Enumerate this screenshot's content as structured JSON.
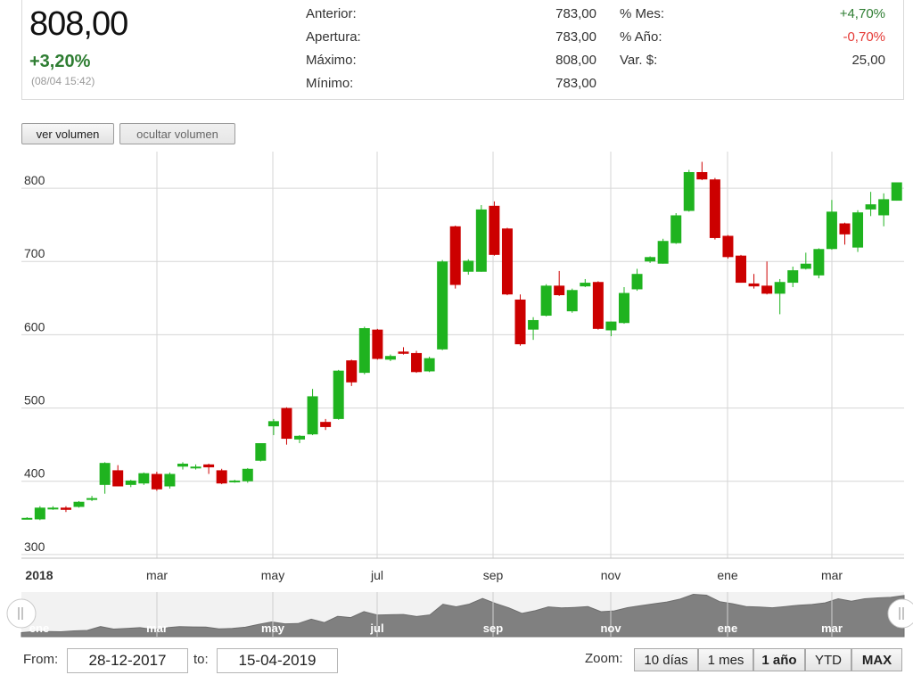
{
  "quote": {
    "price": "808,00",
    "change": "+3,20%",
    "timestamp": "(08/04 15:42)",
    "stats_left": [
      {
        "label": "Anterior:",
        "value": "783,00"
      },
      {
        "label": "Apertura:",
        "value": "783,00"
      },
      {
        "label": "Máximo:",
        "value": "808,00"
      },
      {
        "label": "Mínimo:",
        "value": "783,00"
      }
    ],
    "stats_right": [
      {
        "label": "% Mes:",
        "value": "+4,70%",
        "sign": "pos"
      },
      {
        "label": "% Año:",
        "value": "-0,70%",
        "sign": "neg"
      },
      {
        "label": "Var. $:",
        "value": "25,00",
        "sign": "none"
      }
    ]
  },
  "volume_buttons": {
    "show": "ver volumen",
    "hide": "ocultar volumen"
  },
  "range": {
    "from_label": "From:",
    "from": "28-12-2017",
    "to_label": "to:",
    "to": "15-04-2019"
  },
  "zoom": {
    "label": "Zoom:",
    "options": [
      "10 días",
      "1 mes",
      "1 año",
      "YTD",
      "MAX"
    ],
    "bold": [
      "1 año",
      "MAX"
    ]
  },
  "colors": {
    "up": "#1fb31f",
    "down": "#cc0000",
    "grid": "#d6d6d6",
    "navigator": "#808080"
  },
  "chart_data": {
    "type": "candlestick",
    "y_ticks": [
      300,
      400,
      500,
      600,
      700,
      800
    ],
    "ylim": [
      295,
      850
    ],
    "x_tick_labels": [
      "2018",
      "mar",
      "may",
      "jul",
      "sep",
      "nov",
      "ene",
      "mar"
    ],
    "candles": [
      {
        "o": 350,
        "h": 351,
        "l": 349,
        "c": 350
      },
      {
        "o": 348,
        "h": 366,
        "l": 347,
        "c": 364
      },
      {
        "o": 363,
        "h": 366,
        "l": 361,
        "c": 364
      },
      {
        "o": 364,
        "h": 366,
        "l": 358,
        "c": 361
      },
      {
        "o": 365,
        "h": 373,
        "l": 364,
        "c": 372
      },
      {
        "o": 375,
        "h": 380,
        "l": 373,
        "c": 377
      },
      {
        "o": 395,
        "h": 426,
        "l": 383,
        "c": 425
      },
      {
        "o": 415,
        "h": 422,
        "l": 393,
        "c": 393
      },
      {
        "o": 395,
        "h": 402,
        "l": 392,
        "c": 401
      },
      {
        "o": 397,
        "h": 412,
        "l": 395,
        "c": 411
      },
      {
        "o": 410,
        "h": 413,
        "l": 387,
        "c": 389
      },
      {
        "o": 393,
        "h": 412,
        "l": 390,
        "c": 410
      },
      {
        "o": 420,
        "h": 426,
        "l": 416,
        "c": 424
      },
      {
        "o": 419,
        "h": 423,
        "l": 416,
        "c": 420
      },
      {
        "o": 423,
        "h": 424,
        "l": 410,
        "c": 419
      },
      {
        "o": 415,
        "h": 417,
        "l": 396,
        "c": 397
      },
      {
        "o": 400,
        "h": 402,
        "l": 398,
        "c": 401
      },
      {
        "o": 400,
        "h": 418,
        "l": 398,
        "c": 417
      },
      {
        "o": 428,
        "h": 452,
        "l": 427,
        "c": 452
      },
      {
        "o": 475,
        "h": 485,
        "l": 463,
        "c": 482
      },
      {
        "o": 500,
        "h": 501,
        "l": 450,
        "c": 458
      },
      {
        "o": 457,
        "h": 463,
        "l": 452,
        "c": 462
      },
      {
        "o": 464,
        "h": 526,
        "l": 463,
        "c": 516
      },
      {
        "o": 481,
        "h": 485,
        "l": 470,
        "c": 474
      },
      {
        "o": 485,
        "h": 552,
        "l": 484,
        "c": 551
      },
      {
        "o": 565,
        "h": 566,
        "l": 530,
        "c": 535
      },
      {
        "o": 548,
        "h": 611,
        "l": 546,
        "c": 609
      },
      {
        "o": 607,
        "h": 608,
        "l": 566,
        "c": 567
      },
      {
        "o": 566,
        "h": 573,
        "l": 564,
        "c": 571
      },
      {
        "o": 577,
        "h": 583,
        "l": 573,
        "c": 574
      },
      {
        "o": 575,
        "h": 578,
        "l": 548,
        "c": 549
      },
      {
        "o": 550,
        "h": 570,
        "l": 549,
        "c": 568
      },
      {
        "o": 580,
        "h": 702,
        "l": 579,
        "c": 700
      },
      {
        "o": 748,
        "h": 749,
        "l": 663,
        "c": 668
      },
      {
        "o": 686,
        "h": 703,
        "l": 682,
        "c": 701
      },
      {
        "o": 686,
        "h": 777,
        "l": 686,
        "c": 771
      },
      {
        "o": 776,
        "h": 782,
        "l": 708,
        "c": 709
      },
      {
        "o": 745,
        "h": 746,
        "l": 654,
        "c": 655
      },
      {
        "o": 648,
        "h": 655,
        "l": 585,
        "c": 587
      },
      {
        "o": 607,
        "h": 624,
        "l": 593,
        "c": 620
      },
      {
        "o": 626,
        "h": 669,
        "l": 625,
        "c": 667
      },
      {
        "o": 667,
        "h": 687,
        "l": 653,
        "c": 654
      },
      {
        "o": 632,
        "h": 663,
        "l": 630,
        "c": 661
      },
      {
        "o": 666,
        "h": 676,
        "l": 665,
        "c": 671
      },
      {
        "o": 672,
        "h": 673,
        "l": 607,
        "c": 608
      },
      {
        "o": 606,
        "h": 618,
        "l": 598,
        "c": 618
      },
      {
        "o": 616,
        "h": 665,
        "l": 615,
        "c": 657
      },
      {
        "o": 662,
        "h": 690,
        "l": 660,
        "c": 683
      },
      {
        "o": 700,
        "h": 707,
        "l": 698,
        "c": 706
      },
      {
        "o": 697,
        "h": 731,
        "l": 697,
        "c": 728
      },
      {
        "o": 725,
        "h": 766,
        "l": 724,
        "c": 763
      },
      {
        "o": 769,
        "h": 825,
        "l": 768,
        "c": 822
      },
      {
        "o": 822,
        "h": 836,
        "l": 811,
        "c": 812
      },
      {
        "o": 812,
        "h": 814,
        "l": 730,
        "c": 732
      },
      {
        "o": 735,
        "h": 736,
        "l": 704,
        "c": 706
      },
      {
        "o": 708,
        "h": 709,
        "l": 671,
        "c": 671
      },
      {
        "o": 670,
        "h": 683,
        "l": 663,
        "c": 666
      },
      {
        "o": 667,
        "h": 700,
        "l": 655,
        "c": 656
      },
      {
        "o": 656,
        "h": 676,
        "l": 628,
        "c": 672
      },
      {
        "o": 671,
        "h": 693,
        "l": 665,
        "c": 688
      },
      {
        "o": 690,
        "h": 712,
        "l": 689,
        "c": 697
      },
      {
        "o": 681,
        "h": 718,
        "l": 677,
        "c": 717
      },
      {
        "o": 717,
        "h": 784,
        "l": 716,
        "c": 768
      },
      {
        "o": 752,
        "h": 753,
        "l": 723,
        "c": 737
      },
      {
        "o": 719,
        "h": 770,
        "l": 713,
        "c": 767
      },
      {
        "o": 771,
        "h": 795,
        "l": 762,
        "c": 778
      },
      {
        "o": 763,
        "h": 793,
        "l": 748,
        "c": 785
      },
      {
        "o": 783,
        "h": 808,
        "l": 783,
        "c": 808
      }
    ]
  }
}
